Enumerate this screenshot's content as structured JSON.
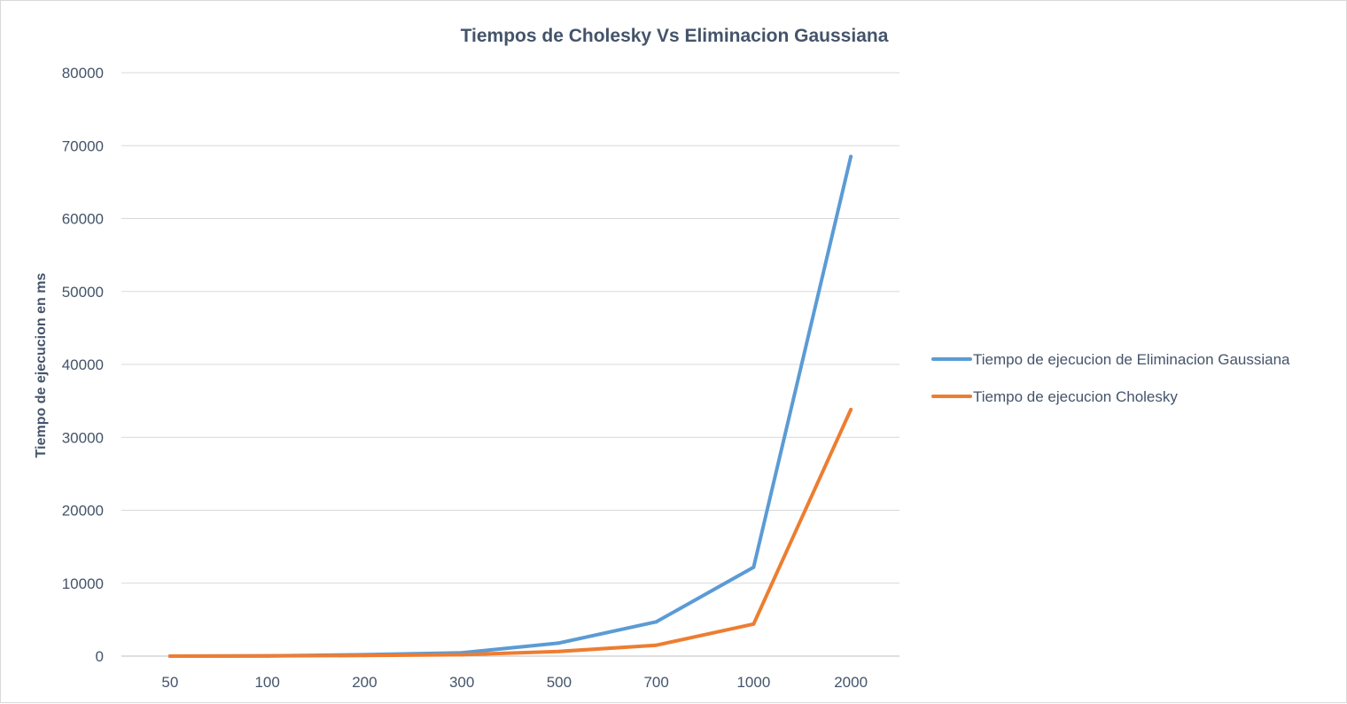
{
  "chart_data": {
    "type": "line",
    "title": "Tiempos de Cholesky Vs Eliminacion  Gaussiana",
    "xlabel": "",
    "ylabel": "Tiempo de ejecucion en ms",
    "categories": [
      "50",
      "100",
      "200",
      "300",
      "500",
      "700",
      "1000",
      "2000"
    ],
    "ylim": [
      0,
      80000
    ],
    "yticks": [
      0,
      10000,
      20000,
      30000,
      40000,
      50000,
      60000,
      70000,
      80000
    ],
    "ytick_labels": [
      "0",
      "10000",
      "20000",
      "30000",
      "40000",
      "50000",
      "60000",
      "70000",
      "80000"
    ],
    "grid": true,
    "legend_position": "right",
    "series": [
      {
        "name": "Tiempo de ejecucion de Eliminacion Gaussiana",
        "color": "#5b9bd5",
        "values": [
          5,
          40,
          200,
          450,
          1800,
          4700,
          12200,
          68500
        ]
      },
      {
        "name": "Tiempo de ejecucion Cholesky",
        "color": "#ed7d31",
        "values": [
          3,
          20,
          90,
          200,
          650,
          1500,
          4400,
          33800
        ]
      }
    ]
  }
}
